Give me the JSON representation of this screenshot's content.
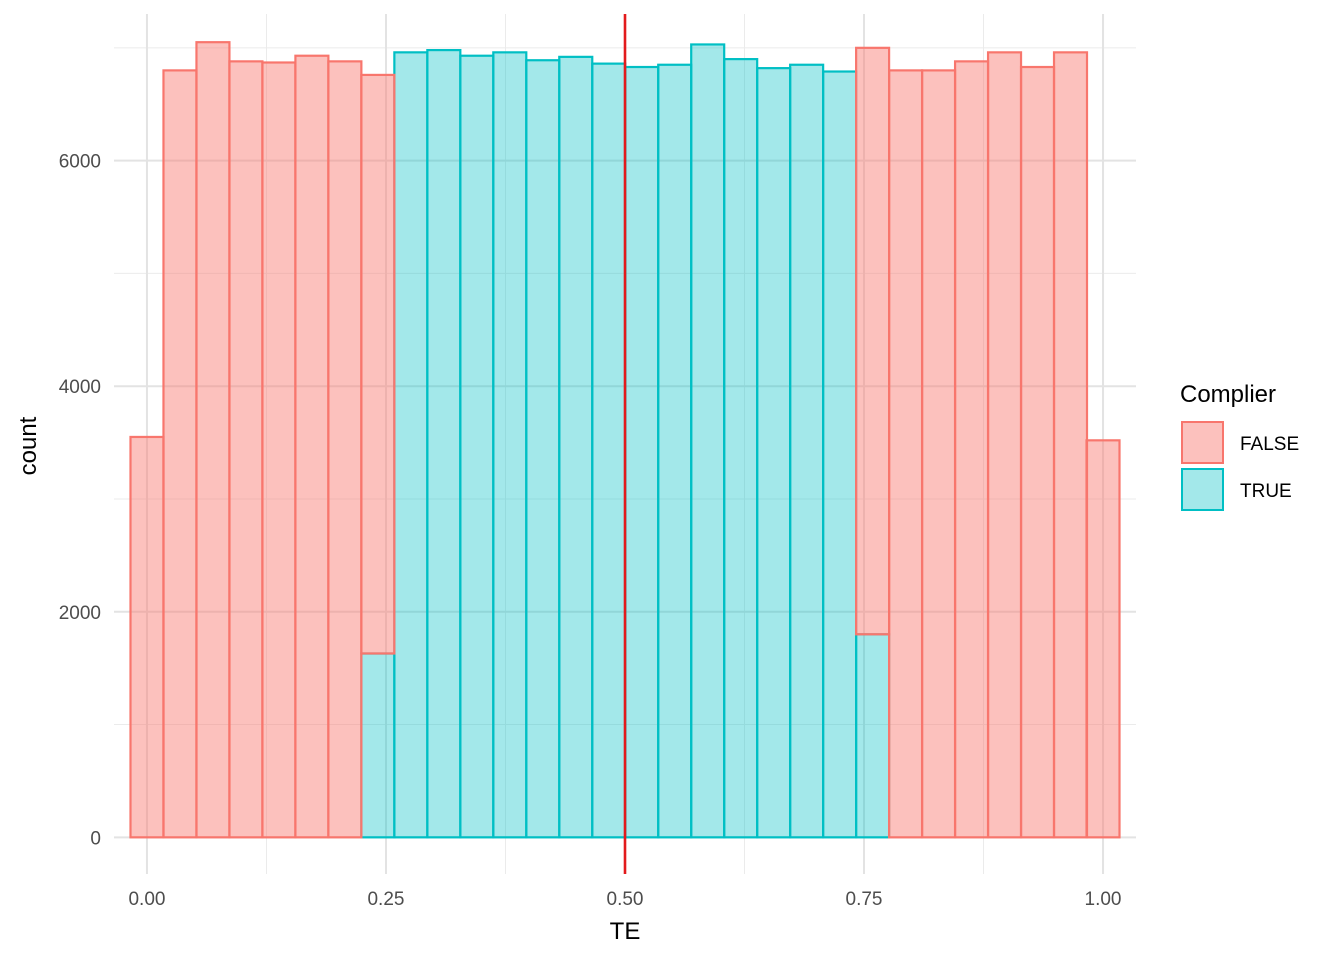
{
  "chart_data": {
    "type": "bar",
    "subtype": "histogram",
    "xlabel": "TE",
    "ylabel": "count",
    "xlim": [
      -0.0345,
      1.0345
    ],
    "ylim": [
      -325,
      7300
    ],
    "x_ticks": [
      {
        "value": 0.0,
        "label": "0.00"
      },
      {
        "value": 0.25,
        "label": "0.25"
      },
      {
        "value": 0.5,
        "label": "0.50"
      },
      {
        "value": 0.75,
        "label": "0.75"
      },
      {
        "value": 1.0,
        "label": "1.00"
      }
    ],
    "y_ticks": [
      {
        "value": 0,
        "label": "0"
      },
      {
        "value": 2000,
        "label": "2000"
      },
      {
        "value": 4000,
        "label": "4000"
      },
      {
        "value": 6000,
        "label": "6000"
      }
    ],
    "grid": true,
    "bin_width": 0.0345,
    "bin_centers": [
      0.0,
      0.0345,
      0.069,
      0.1035,
      0.138,
      0.1725,
      0.207,
      0.2415,
      0.276,
      0.3105,
      0.345,
      0.3795,
      0.414,
      0.4485,
      0.483,
      0.5175,
      0.552,
      0.5865,
      0.621,
      0.6555,
      0.69,
      0.7245,
      0.759,
      0.7935,
      0.828,
      0.8625,
      0.897,
      0.9315,
      0.966,
      1.0
    ],
    "legend": {
      "title": "Complier",
      "position": "right",
      "entries": [
        "FALSE",
        "TRUE"
      ]
    },
    "series": [
      {
        "name": "FALSE",
        "fill": "#F8766D",
        "stroke": "#F8766D",
        "values": [
          3550,
          6800,
          7050,
          6880,
          6870,
          6930,
          6880,
          5130,
          0,
          0,
          0,
          0,
          0,
          0,
          0,
          0,
          0,
          0,
          0,
          0,
          0,
          0,
          5200,
          6800,
          6800,
          6880,
          6960,
          6830,
          6960,
          3520
        ]
      },
      {
        "name": "TRUE",
        "fill": "#00BFC4",
        "stroke": "#00BFC4",
        "values": [
          0,
          0,
          0,
          0,
          0,
          0,
          0,
          1630,
          6960,
          6980,
          6930,
          6960,
          6890,
          6920,
          6860,
          6830,
          6850,
          7030,
          6900,
          6820,
          6850,
          6790,
          1800,
          0,
          0,
          0,
          0,
          0,
          0,
          0
        ]
      }
    ],
    "vline": {
      "x": 0.5,
      "color": "#e31a1c"
    }
  }
}
